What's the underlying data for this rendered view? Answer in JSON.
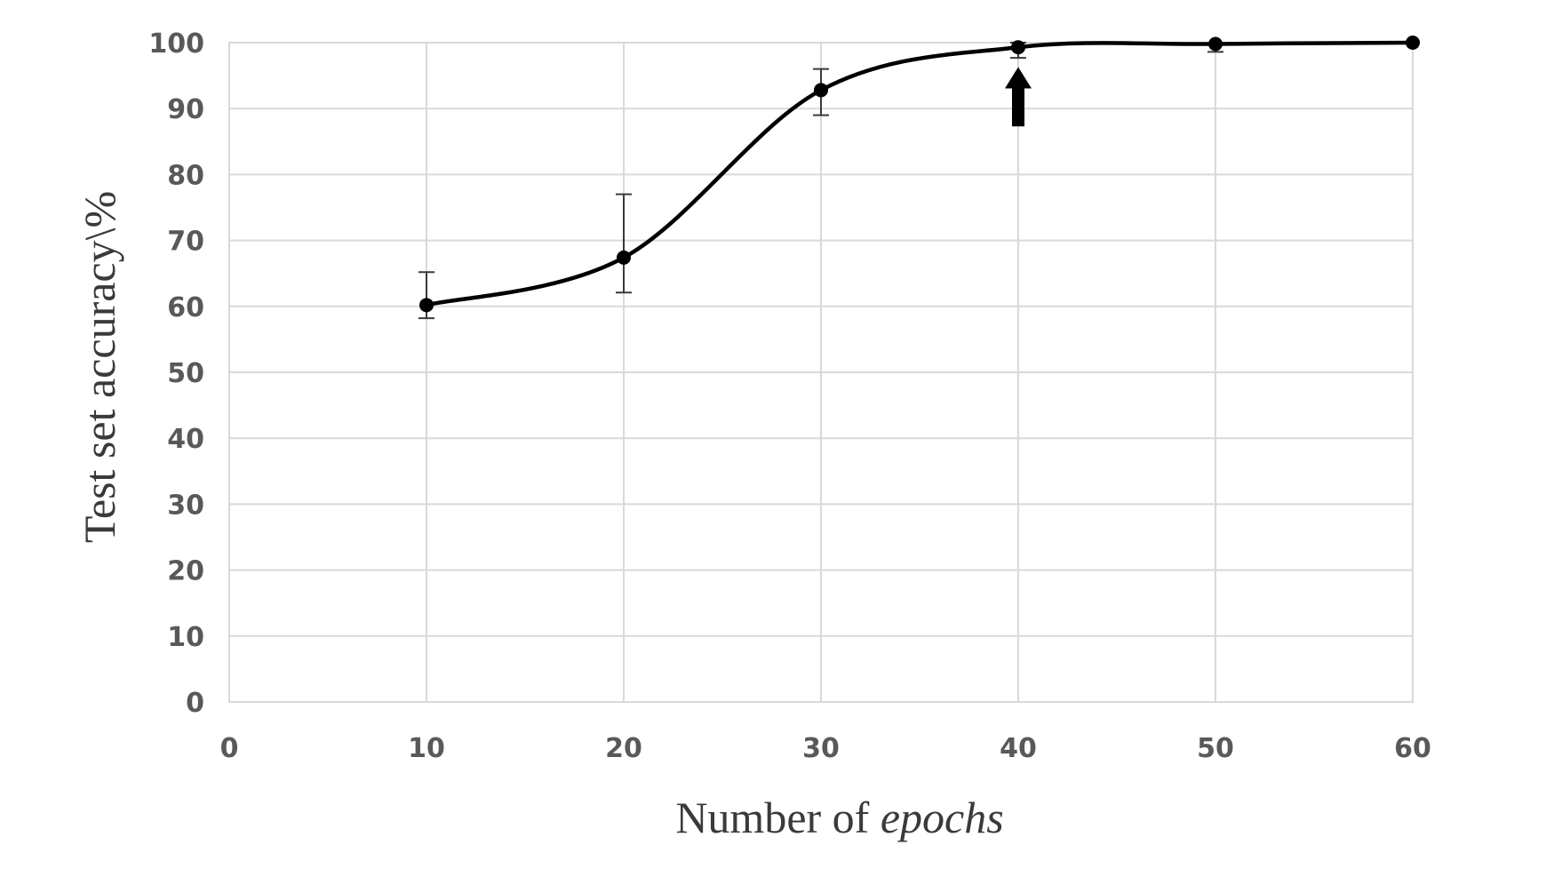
{
  "chart_data": {
    "type": "line",
    "xlabel_prefix": "Number of ",
    "xlabel_emphasis": "epochs",
    "ylabel": "Test set accuracy\\%",
    "xlim": [
      0,
      60
    ],
    "ylim": [
      0,
      100
    ],
    "xticks": [
      "0",
      "10",
      "20",
      "30",
      "40",
      "50",
      "60"
    ],
    "yticks": [
      "0",
      "10",
      "20",
      "30",
      "40",
      "50",
      "60",
      "70",
      "80",
      "90",
      "100"
    ],
    "grid": true,
    "smooth": true,
    "series": [
      {
        "x": [
          10,
          20,
          30,
          40,
          50,
          60
        ],
        "y": [
          60.2,
          67.4,
          92.8,
          99.3,
          99.8,
          100
        ],
        "error_low": [
          2.0,
          5.3,
          3.8,
          1.6,
          1.2,
          0
        ],
        "error_high": [
          5.0,
          9.6,
          3.2,
          0.7,
          0.2,
          0
        ]
      }
    ],
    "annotations": [
      {
        "type": "arrow-up",
        "x": 40,
        "label": ""
      }
    ]
  }
}
